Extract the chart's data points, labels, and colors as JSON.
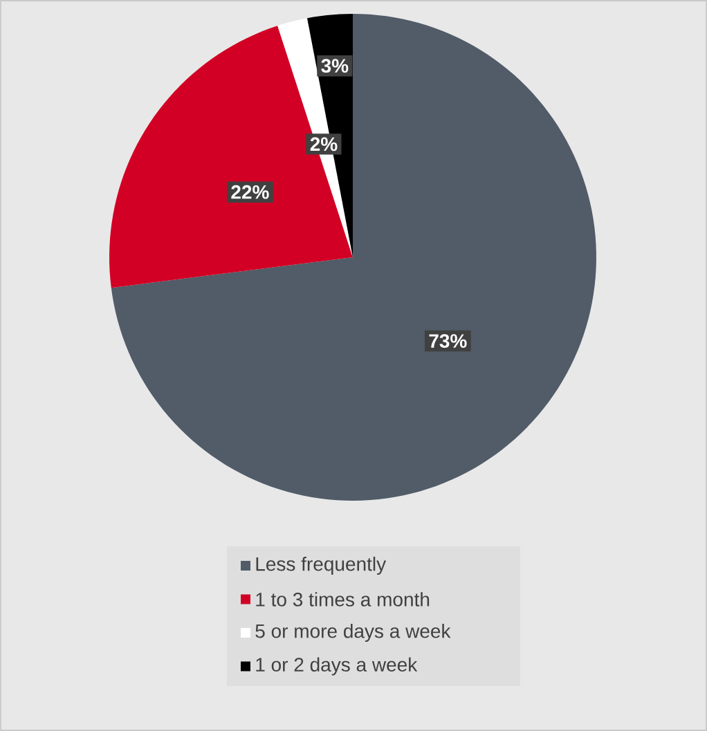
{
  "chart_data": {
    "type": "pie",
    "categories": [
      "Less frequently",
      "1 to 3 times a month",
      "5 or more days a week",
      "1 or 2 days a week"
    ],
    "values": [
      73,
      22,
      2,
      3
    ],
    "colors": [
      "#515c68",
      "#d20024",
      "#ffffff",
      "#000000"
    ],
    "value_labels": [
      "73%",
      "22%",
      "2%",
      "3%"
    ],
    "legend": "bottom"
  }
}
